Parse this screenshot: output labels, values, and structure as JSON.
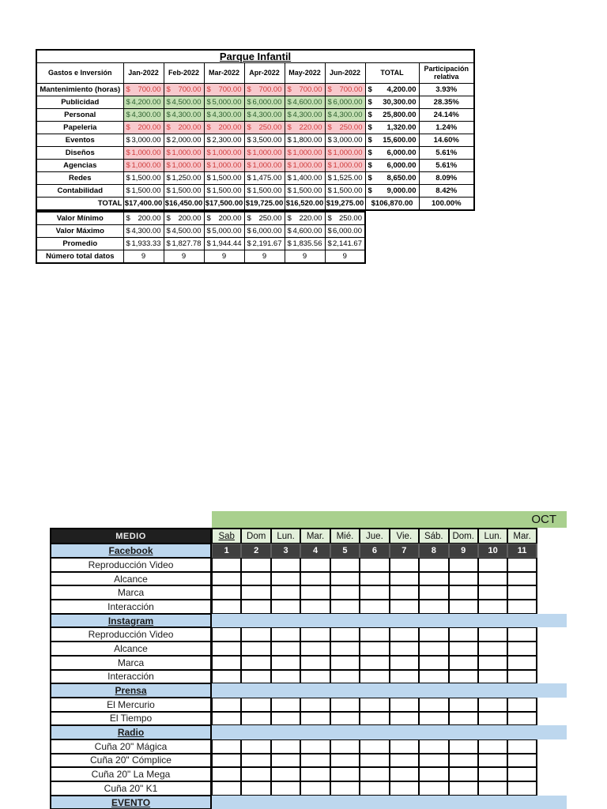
{
  "budget_table": {
    "title": "Parque Infantil",
    "currency_symbol": "$",
    "columns": [
      "Gastos e Inversión",
      "Jan-2022",
      "Feb-2022",
      "Mar-2022",
      "Apr-2022",
      "May-2022",
      "Jun-2022",
      "TOTAL",
      "Participación relativa"
    ],
    "rows": [
      {
        "label": "Mantenimiento (horas)",
        "style": "bad",
        "values": [
          "700.00",
          "700.00",
          "700.00",
          "700.00",
          "700.00",
          "700.00"
        ],
        "total": "4,200.00",
        "share": "3.93%"
      },
      {
        "label": "Publicidad",
        "style": "good",
        "values": [
          "4,200.00",
          "4,500.00",
          "5,000.00",
          "6,000.00",
          "4,600.00",
          "6,000.00"
        ],
        "total": "30,300.00",
        "share": "28.35%"
      },
      {
        "label": "Personal",
        "style": "good",
        "values": [
          "4,300.00",
          "4,300.00",
          "4,300.00",
          "4,300.00",
          "4,300.00",
          "4,300.00"
        ],
        "total": "25,800.00",
        "share": "24.14%"
      },
      {
        "label": "Papeleria",
        "style": "bad",
        "values": [
          "200.00",
          "200.00",
          "200.00",
          "250.00",
          "220.00",
          "250.00"
        ],
        "total": "1,320.00",
        "share": "1.24%"
      },
      {
        "label": "Eventos",
        "style": "plain",
        "values": [
          "3,000.00",
          "2,000.00",
          "2,300.00",
          "3,500.00",
          "1,800.00",
          "3,000.00"
        ],
        "total": "15,600.00",
        "share": "14.60%"
      },
      {
        "label": "Diseños",
        "style": "bad",
        "values": [
          "1,000.00",
          "1,000.00",
          "1,000.00",
          "1,000.00",
          "1,000.00",
          "1,000.00"
        ],
        "total": "6,000.00",
        "share": "5.61%"
      },
      {
        "label": "Agencias",
        "style": "bad",
        "values": [
          "1,000.00",
          "1,000.00",
          "1,000.00",
          "1,000.00",
          "1,000.00",
          "1,000.00"
        ],
        "total": "6,000.00",
        "share": "5.61%"
      },
      {
        "label": "Redes",
        "style": "plain",
        "values": [
          "1,500.00",
          "1,250.00",
          "1,500.00",
          "1,475.00",
          "1,400.00",
          "1,525.00"
        ],
        "total": "8,650.00",
        "share": "8.09%"
      },
      {
        "label": "Contabilidad",
        "style": "plain",
        "values": [
          "1,500.00",
          "1,500.00",
          "1,500.00",
          "1,500.00",
          "1,500.00",
          "1,500.00"
        ],
        "total": "9,000.00",
        "share": "8.42%"
      }
    ],
    "total_row": {
      "label": "TOTAL",
      "values": [
        "$17,400.00",
        "$16,450.00",
        "$17,500.00",
        "$19,725.00",
        "$16,520.00",
        "$19,275.00"
      ],
      "total": "$106,870.00",
      "share": "100.00%"
    }
  },
  "stats_table": {
    "rows": [
      {
        "label": "Valor Mínimo",
        "currency": true,
        "values": [
          "200.00",
          "200.00",
          "200.00",
          "250.00",
          "220.00",
          "250.00"
        ]
      },
      {
        "label": "Valor Máximo",
        "currency": true,
        "values": [
          "4,300.00",
          "4,500.00",
          "5,000.00",
          "6,000.00",
          "4,600.00",
          "6,000.00"
        ]
      },
      {
        "label": "Promedio",
        "currency": true,
        "values": [
          "1,933.33",
          "1,827.78",
          "1,944.44",
          "2,191.67",
          "1,835.56",
          "2,141.67"
        ]
      },
      {
        "label": "Número total datos",
        "currency": false,
        "values": [
          "9",
          "9",
          "9",
          "9",
          "9",
          "9"
        ]
      }
    ]
  },
  "schedule": {
    "month_label": "OCT",
    "header": "MEDIO",
    "day_names": [
      "Sab",
      "Dom",
      "Lun.",
      "Mar.",
      "Mié.",
      "Jue.",
      "Vie.",
      "Sáb.",
      "Dom.",
      "Lun.",
      "Mar."
    ],
    "day_numbers": [
      "1",
      "2",
      "3",
      "4",
      "5",
      "6",
      "7",
      "8",
      "9",
      "10",
      "11"
    ],
    "first_section": "Facebook",
    "rows": [
      {
        "kind": "data",
        "label": "Reproducción Video"
      },
      {
        "kind": "data",
        "label": "Alcance"
      },
      {
        "kind": "data",
        "label": "Marca"
      },
      {
        "kind": "data",
        "label": "Interacción"
      },
      {
        "kind": "section",
        "label": "Instagram"
      },
      {
        "kind": "data",
        "label": "Reproducción Video"
      },
      {
        "kind": "data",
        "label": "Alcance"
      },
      {
        "kind": "data",
        "label": "Marca"
      },
      {
        "kind": "data",
        "label": "Interacción"
      },
      {
        "kind": "section",
        "label": "Prensa"
      },
      {
        "kind": "data",
        "label": "El Mercurio"
      },
      {
        "kind": "data",
        "label": "El Tiempo"
      },
      {
        "kind": "section",
        "label": "Radio"
      },
      {
        "kind": "data",
        "label": "Cuña 20\" Mágica"
      },
      {
        "kind": "data",
        "label": "Cuña 20\" Cómplice"
      },
      {
        "kind": "data",
        "label": "Cuña 20\" La Mega"
      },
      {
        "kind": "data",
        "label": "Cuña 20\" K1"
      },
      {
        "kind": "section",
        "label": "EVENTO"
      }
    ]
  },
  "colors": {
    "bad_bg": "#f8c9cd",
    "bad_text": "#d03a3a",
    "good_bg": "#c5e0b4",
    "good_text": "#2c5f2e",
    "month_band": "#a9d08e",
    "day_cell": "#e2efda",
    "section_blue": "#bdd7ee",
    "number_row": "#3f3f3f",
    "medio_header": "#1f1f1f"
  }
}
